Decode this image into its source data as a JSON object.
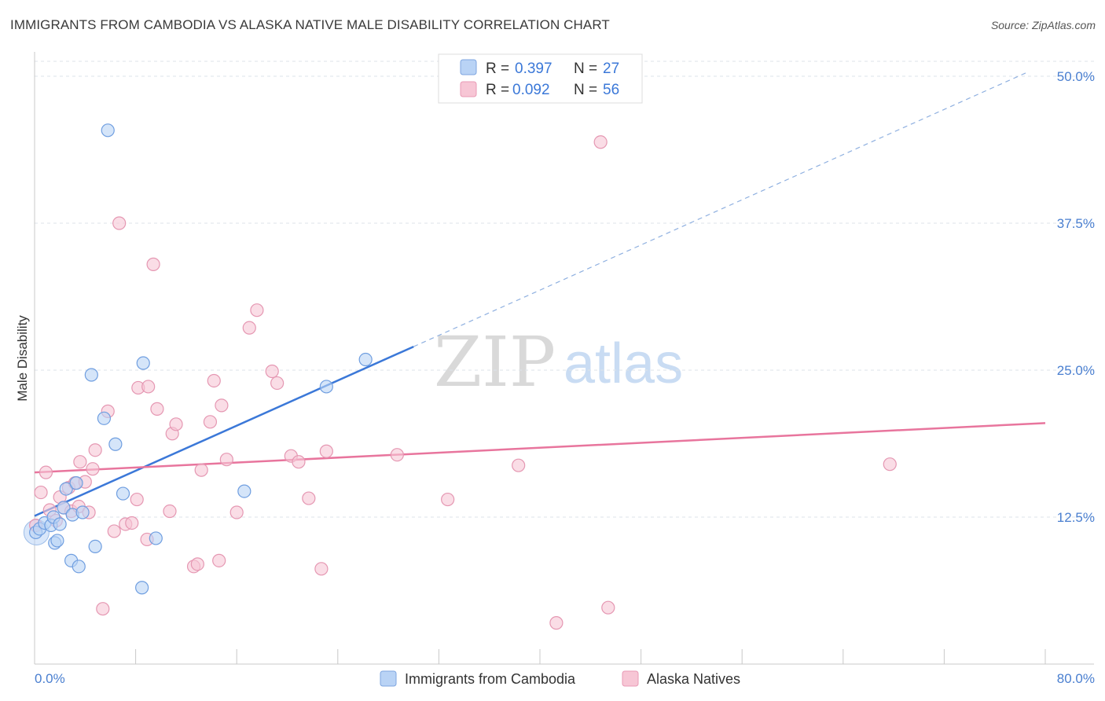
{
  "title": "IMMIGRANTS FROM CAMBODIA VS ALASKA NATIVE MALE DISABILITY CORRELATION CHART",
  "source": "Source: ZipAtlas.com",
  "watermark": {
    "zip": "ZIP",
    "atlas": "atlas"
  },
  "colors": {
    "blue": "#3b78d8",
    "blue_fill": "#b9d3f5",
    "pink": "#e8759d",
    "pink_fill": "#f7c6d5",
    "tick_text": "#4a7fd0",
    "grid": "#dde3ea"
  },
  "legend": {
    "rows": [
      {
        "r_label": "R = ",
        "r_value": "0.397",
        "n_label": "N = ",
        "n_value": "27"
      },
      {
        "r_label": "R = ",
        "r_value": "0.092",
        "n_label": "N = ",
        "n_value": "56"
      }
    ]
  },
  "chart_data": {
    "type": "scatter",
    "title": "IMMIGRANTS FROM CAMBODIA VS ALASKA NATIVE MALE DISABILITY CORRELATION CHART",
    "xlabel": "",
    "ylabel": "Male Disability",
    "xlim": [
      0,
      80
    ],
    "ylim": [
      0,
      52.5
    ],
    "x_tick_labels": [
      "0.0%",
      "80.0%"
    ],
    "y_ticks": [
      12.5,
      25.0,
      37.5,
      50.0
    ],
    "y_tick_labels": [
      "12.5%",
      "25.0%",
      "37.5%",
      "50.0%"
    ],
    "grid": "horizontal dashed",
    "legend_position": "top-center",
    "series": [
      {
        "name": "Immigrants from Cambodia",
        "color": "#3b78d8",
        "points": [
          [
            0.1,
            11.2
          ],
          [
            0.4,
            11.5
          ],
          [
            0.8,
            12.0
          ],
          [
            1.3,
            11.8
          ],
          [
            1.5,
            12.5
          ],
          [
            1.6,
            10.3
          ],
          [
            1.8,
            10.5
          ],
          [
            2.0,
            11.9
          ],
          [
            2.3,
            13.3
          ],
          [
            2.5,
            14.9
          ],
          [
            2.9,
            8.8
          ],
          [
            3.0,
            12.7
          ],
          [
            3.3,
            15.4
          ],
          [
            3.5,
            8.3
          ],
          [
            3.8,
            12.9
          ],
          [
            4.5,
            24.6
          ],
          [
            4.8,
            10.0
          ],
          [
            5.5,
            20.9
          ],
          [
            5.8,
            45.4
          ],
          [
            6.4,
            18.7
          ],
          [
            7.0,
            14.5
          ],
          [
            8.5,
            6.5
          ],
          [
            8.6,
            25.6
          ],
          [
            9.6,
            10.7
          ],
          [
            16.6,
            14.7
          ],
          [
            23.1,
            23.6
          ],
          [
            26.2,
            25.9
          ]
        ],
        "trend": {
          "x": [
            0,
            30
          ],
          "y": [
            12.6,
            27.0
          ],
          "dashed_extension": {
            "x": [
              30,
              78.5
            ],
            "y": [
              27.0,
              50.3
            ]
          }
        }
      },
      {
        "name": "Alaska Natives",
        "color": "#e8759d",
        "points": [
          [
            0.1,
            11.8
          ],
          [
            0.5,
            14.6
          ],
          [
            0.9,
            16.3
          ],
          [
            1.2,
            13.1
          ],
          [
            1.7,
            12.2
          ],
          [
            2.0,
            14.2
          ],
          [
            2.3,
            13.3
          ],
          [
            2.7,
            15.0
          ],
          [
            2.9,
            13.0
          ],
          [
            3.2,
            15.4
          ],
          [
            3.5,
            13.4
          ],
          [
            3.6,
            17.2
          ],
          [
            4.0,
            15.5
          ],
          [
            4.3,
            12.9
          ],
          [
            4.6,
            16.6
          ],
          [
            4.8,
            18.2
          ],
          [
            5.4,
            4.7
          ],
          [
            5.8,
            21.5
          ],
          [
            6.3,
            11.3
          ],
          [
            6.7,
            37.5
          ],
          [
            7.2,
            11.9
          ],
          [
            7.7,
            12.0
          ],
          [
            8.1,
            14.0
          ],
          [
            8.2,
            23.5
          ],
          [
            8.9,
            10.6
          ],
          [
            9.0,
            23.6
          ],
          [
            9.4,
            34.0
          ],
          [
            9.7,
            21.7
          ],
          [
            10.7,
            13.0
          ],
          [
            10.9,
            19.6
          ],
          [
            11.2,
            20.4
          ],
          [
            12.6,
            8.3
          ],
          [
            12.9,
            8.5
          ],
          [
            13.2,
            16.5
          ],
          [
            13.9,
            20.6
          ],
          [
            14.2,
            24.1
          ],
          [
            14.6,
            8.8
          ],
          [
            14.8,
            22.0
          ],
          [
            15.2,
            17.4
          ],
          [
            16.0,
            12.9
          ],
          [
            17.0,
            28.6
          ],
          [
            17.6,
            30.1
          ],
          [
            18.8,
            24.9
          ],
          [
            19.2,
            23.9
          ],
          [
            20.3,
            17.7
          ],
          [
            20.9,
            17.2
          ],
          [
            21.7,
            14.1
          ],
          [
            22.7,
            8.1
          ],
          [
            23.1,
            18.1
          ],
          [
            28.7,
            17.8
          ],
          [
            32.7,
            14.0
          ],
          [
            38.3,
            16.9
          ],
          [
            41.3,
            3.5
          ],
          [
            44.8,
            44.4
          ],
          [
            45.4,
            4.8
          ],
          [
            67.7,
            17.0
          ]
        ],
        "trend": {
          "x": [
            0,
            80
          ],
          "y": [
            16.3,
            20.5
          ]
        }
      }
    ]
  }
}
